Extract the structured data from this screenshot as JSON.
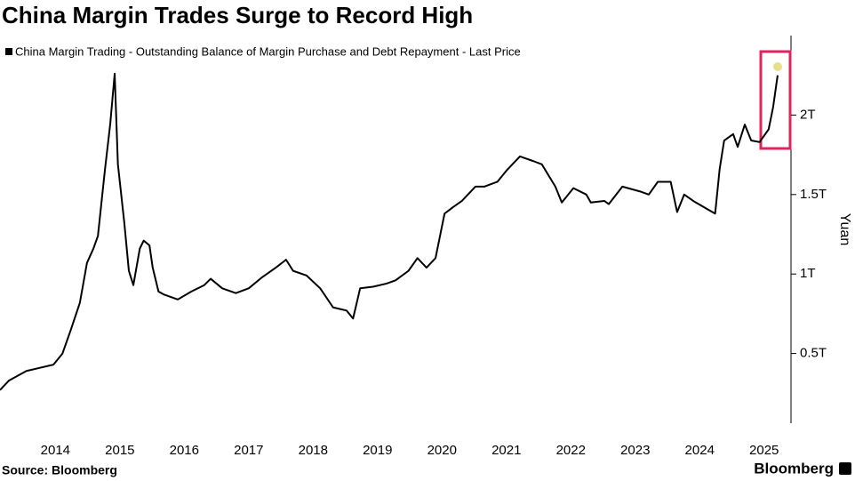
{
  "chart_data": {
    "type": "line",
    "title": "China Margin Trades Surge to Record High",
    "legend": "China Margin Trading - Outstanding Balance of Margin Purchase and Debt Repayment - Last Price",
    "y_label": "Yuan",
    "source": "Source: Bloomberg",
    "brand": "Bloomberg",
    "x": [
      2013.64,
      2013.78,
      2014.05,
      2014.26,
      2014.47,
      2014.61,
      2014.74,
      2014.88,
      2014.99,
      2015.09,
      2015.16,
      2015.27,
      2015.35,
      2015.42,
      2015.47,
      2015.57,
      2015.64,
      2015.71,
      2015.81,
      2015.87,
      2015.96,
      2016.01,
      2016.1,
      2016.19,
      2016.4,
      2016.61,
      2016.81,
      2016.91,
      2017.09,
      2017.3,
      2017.5,
      2017.71,
      2017.92,
      2018.08,
      2018.19,
      2018.4,
      2018.61,
      2018.81,
      2019.02,
      2019.12,
      2019.23,
      2019.43,
      2019.64,
      2019.78,
      2019.98,
      2020.12,
      2020.26,
      2020.4,
      2020.54,
      2020.67,
      2020.81,
      2021.02,
      2021.16,
      2021.36,
      2021.5,
      2021.71,
      2021.92,
      2022.05,
      2022.26,
      2022.36,
      2022.54,
      2022.74,
      2022.81,
      2023.02,
      2023.09,
      2023.3,
      2023.57,
      2023.71,
      2023.85,
      2024.05,
      2024.15,
      2024.26,
      2024.4,
      2024.61,
      2024.74,
      2024.81,
      2024.88,
      2025.02,
      2025.09,
      2025.2,
      2025.3,
      2025.43,
      2025.57,
      2025.64,
      2025.71
    ],
    "series": [
      {
        "name": "China Margin Trading - Outstanding Balance of Margin Purchase and Debt Repayment - Last Price",
        "color": "#000000",
        "values": [
          0.27,
          0.33,
          0.39,
          0.41,
          0.43,
          0.5,
          0.65,
          0.82,
          1.07,
          1.16,
          1.24,
          1.66,
          1.94,
          2.26,
          1.69,
          1.32,
          1.02,
          0.93,
          1.16,
          1.21,
          1.18,
          1.04,
          0.89,
          0.87,
          0.84,
          0.89,
          0.93,
          0.97,
          0.91,
          0.88,
          0.91,
          0.98,
          1.04,
          1.09,
          1.02,
          0.99,
          0.91,
          0.79,
          0.77,
          0.72,
          0.91,
          0.92,
          0.94,
          0.96,
          1.02,
          1.1,
          1.04,
          1.1,
          1.38,
          1.42,
          1.46,
          1.55,
          1.55,
          1.58,
          1.65,
          1.74,
          1.71,
          1.69,
          1.55,
          1.45,
          1.54,
          1.5,
          1.45,
          1.46,
          1.44,
          1.55,
          1.52,
          1.5,
          1.58,
          1.58,
          1.39,
          1.5,
          1.46,
          1.41,
          1.38,
          1.66,
          1.84,
          1.88,
          1.8,
          1.94,
          1.84,
          1.83,
          1.91,
          2.05,
          2.25
        ]
      }
    ],
    "xlim": [
      2013.64,
      2025.89
    ],
    "ylim": [
      0,
      2.5
    ],
    "xticks": [
      {
        "value": 2014.5,
        "label": "2014"
      },
      {
        "value": 2015.5,
        "label": "2015"
      },
      {
        "value": 2016.5,
        "label": "2016"
      },
      {
        "value": 2017.5,
        "label": "2017"
      },
      {
        "value": 2018.5,
        "label": "2018"
      },
      {
        "value": 2019.5,
        "label": "2019"
      },
      {
        "value": 2020.5,
        "label": "2020"
      },
      {
        "value": 2021.5,
        "label": "2021"
      },
      {
        "value": 2022.5,
        "label": "2022"
      },
      {
        "value": 2023.5,
        "label": "2023"
      },
      {
        "value": 2024.5,
        "label": "2024"
      },
      {
        "value": 2025.5,
        "label": "2025"
      }
    ],
    "yticks": [
      {
        "value": 0.5,
        "label": "0.5T"
      },
      {
        "value": 1,
        "label": "1T"
      },
      {
        "value": 1.5,
        "label": "1.5T"
      },
      {
        "value": 2,
        "label": "2T"
      }
    ],
    "grid": false
  }
}
